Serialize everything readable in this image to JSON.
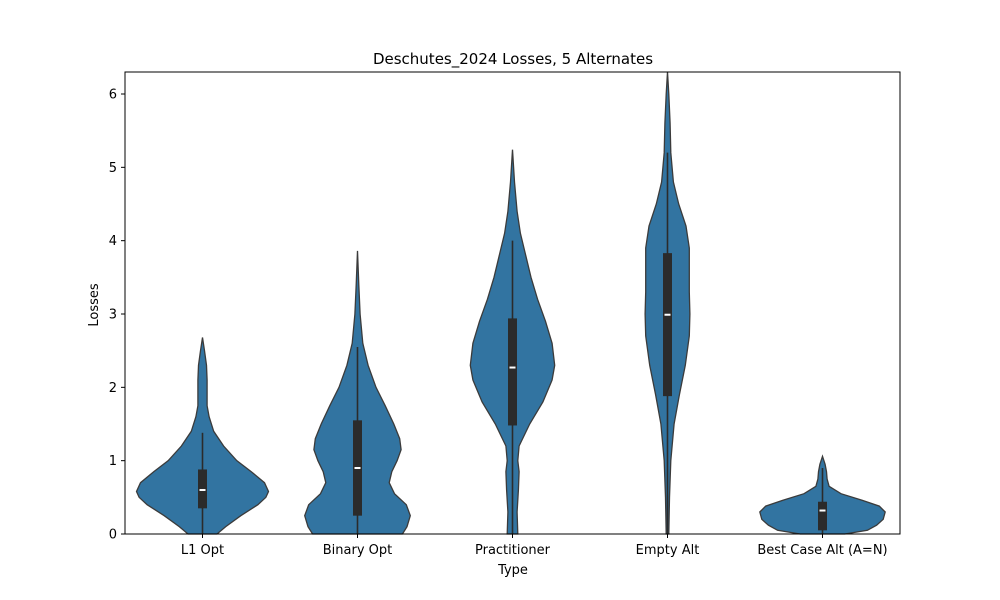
{
  "chart_data": {
    "type": "violin",
    "title": "Deschutes_2024 Losses, 5 Alternates",
    "xlabel": "Type",
    "ylabel": "Losses",
    "ylim": [
      0,
      6.3
    ],
    "yticks": [
      0,
      1,
      2,
      3,
      4,
      5,
      6
    ],
    "grid": false,
    "legend": "none",
    "violin_color": "#3274a1",
    "outline_color": "#3b3b3b",
    "box_color": "#2b2b2b",
    "median_color": "#ffffff",
    "categories": [
      "L1 Opt",
      "Binary Opt",
      "Practitioner",
      "Empty Alt",
      "Best Case Alt (A=N)"
    ],
    "series": [
      {
        "category": "L1 Opt",
        "min": 0,
        "q1": 0.35,
        "median": 0.6,
        "q3": 0.88,
        "whisker_high": 1.38,
        "max": 2.68,
        "density": [
          [
            0.0,
            0.22
          ],
          [
            0.1,
            0.35
          ],
          [
            0.25,
            0.58
          ],
          [
            0.4,
            0.84
          ],
          [
            0.5,
            0.96
          ],
          [
            0.58,
            1.0
          ],
          [
            0.7,
            0.94
          ],
          [
            0.85,
            0.74
          ],
          [
            1.0,
            0.52
          ],
          [
            1.2,
            0.32
          ],
          [
            1.4,
            0.17
          ],
          [
            1.6,
            0.1
          ],
          [
            1.75,
            0.07
          ],
          [
            1.9,
            0.07
          ],
          [
            2.1,
            0.07
          ],
          [
            2.3,
            0.06
          ],
          [
            2.5,
            0.03
          ],
          [
            2.68,
            0.0
          ]
        ]
      },
      {
        "category": "Binary Opt",
        "min": 0,
        "q1": 0.25,
        "median": 0.9,
        "q3": 1.55,
        "whisker_high": 2.55,
        "max": 3.86,
        "density": [
          [
            0.0,
            0.68
          ],
          [
            0.1,
            0.75
          ],
          [
            0.25,
            0.8
          ],
          [
            0.4,
            0.74
          ],
          [
            0.55,
            0.56
          ],
          [
            0.7,
            0.48
          ],
          [
            0.85,
            0.52
          ],
          [
            1.0,
            0.6
          ],
          [
            1.15,
            0.66
          ],
          [
            1.3,
            0.64
          ],
          [
            1.5,
            0.55
          ],
          [
            1.75,
            0.42
          ],
          [
            2.0,
            0.28
          ],
          [
            2.3,
            0.16
          ],
          [
            2.6,
            0.08
          ],
          [
            3.0,
            0.04
          ],
          [
            3.4,
            0.02
          ],
          [
            3.86,
            0.0
          ]
        ]
      },
      {
        "category": "Practitioner",
        "min": 0,
        "q1": 1.48,
        "median": 2.27,
        "q3": 2.94,
        "whisker_high": 4.0,
        "max": 5.24,
        "density": [
          [
            0.0,
            0.08
          ],
          [
            0.3,
            0.07
          ],
          [
            0.6,
            0.09
          ],
          [
            0.85,
            0.1
          ],
          [
            1.0,
            0.08
          ],
          [
            1.2,
            0.1
          ],
          [
            1.5,
            0.26
          ],
          [
            1.8,
            0.46
          ],
          [
            2.1,
            0.6
          ],
          [
            2.3,
            0.64
          ],
          [
            2.6,
            0.6
          ],
          [
            2.9,
            0.5
          ],
          [
            3.2,
            0.38
          ],
          [
            3.5,
            0.28
          ],
          [
            3.8,
            0.2
          ],
          [
            4.1,
            0.12
          ],
          [
            4.4,
            0.07
          ],
          [
            4.8,
            0.03
          ],
          [
            5.24,
            0.0
          ]
        ]
      },
      {
        "category": "Empty Alt",
        "min": 0,
        "q1": 1.88,
        "median": 2.99,
        "q3": 3.83,
        "whisker_high": 5.2,
        "max": 6.3,
        "density": [
          [
            0.0,
            0.02
          ],
          [
            0.5,
            0.03
          ],
          [
            1.0,
            0.05
          ],
          [
            1.5,
            0.1
          ],
          [
            1.9,
            0.18
          ],
          [
            2.3,
            0.27
          ],
          [
            2.7,
            0.33
          ],
          [
            3.0,
            0.34
          ],
          [
            3.3,
            0.33
          ],
          [
            3.6,
            0.33
          ],
          [
            3.9,
            0.33
          ],
          [
            4.2,
            0.28
          ],
          [
            4.5,
            0.17
          ],
          [
            4.8,
            0.09
          ],
          [
            5.2,
            0.05
          ],
          [
            5.6,
            0.04
          ],
          [
            6.0,
            0.02
          ],
          [
            6.3,
            0.0
          ]
        ]
      },
      {
        "category": "Best Case Alt (A=N)",
        "min": 0,
        "q1": 0.05,
        "median": 0.32,
        "q3": 0.44,
        "whisker_high": 0.9,
        "max": 1.06,
        "density": [
          [
            0.0,
            0.34
          ],
          [
            0.05,
            0.68
          ],
          [
            0.12,
            0.82
          ],
          [
            0.2,
            0.92
          ],
          [
            0.3,
            0.95
          ],
          [
            0.38,
            0.86
          ],
          [
            0.46,
            0.6
          ],
          [
            0.55,
            0.28
          ],
          [
            0.65,
            0.1
          ],
          [
            0.75,
            0.07
          ],
          [
            0.85,
            0.06
          ],
          [
            0.95,
            0.04
          ],
          [
            1.06,
            0.0
          ]
        ]
      }
    ]
  }
}
